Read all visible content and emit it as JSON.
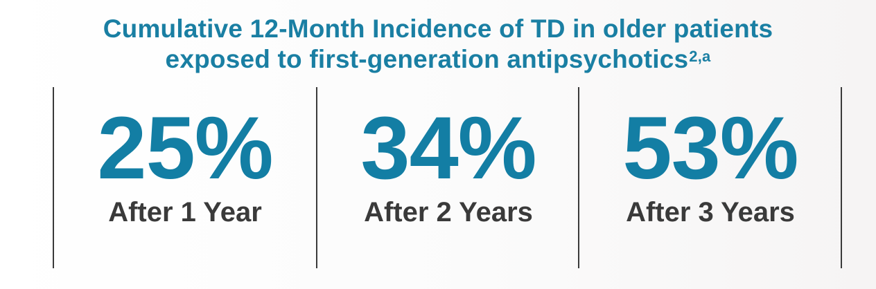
{
  "title": {
    "line1": "Cumulative 12-Month Incidence of TD in older patients",
    "line2": "exposed to first-generation antipsychotics",
    "superscript": "2,a"
  },
  "stats": [
    {
      "value": "25%",
      "label": "After 1 Year"
    },
    {
      "value": "34%",
      "label": "After 2 Years"
    },
    {
      "value": "53%",
      "label": "After 3 Years"
    }
  ],
  "colors": {
    "accent": "#137ea4",
    "title": "#1a7fa3",
    "label": "#3a3a3a",
    "divider": "#3a3a3a"
  }
}
